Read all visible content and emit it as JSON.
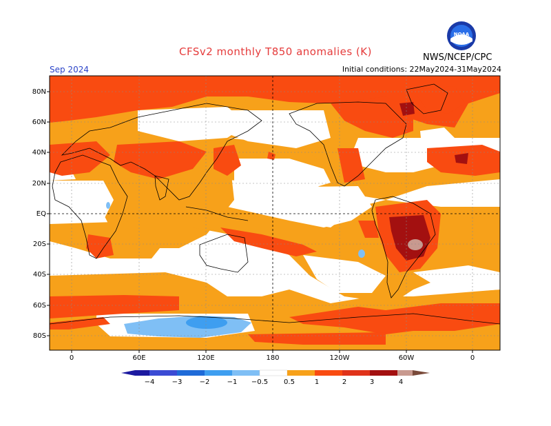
{
  "title": "CFSv2 monthly T850 anomalies (K)",
  "month_label": "Sep 2024",
  "init_conditions": "Initial conditions: 22May2024-31May2024",
  "agency": "NWS/NCEP/CPC",
  "logo_text": "NOAA",
  "lat_labels": [
    "80N",
    "60N",
    "40N",
    "20N",
    "EQ",
    "20S",
    "40S",
    "60S",
    "80S"
  ],
  "lon_labels": [
    "0",
    "60E",
    "120E",
    "180",
    "120W",
    "60W",
    "0"
  ],
  "colorbar": {
    "labels": [
      "−4",
      "−3",
      "−2",
      "−1",
      "−0.5",
      "0.5",
      "1",
      "2",
      "3",
      "4"
    ],
    "neg_colors": [
      "#1c1aa0",
      "#3b4bd4",
      "#1f6bd8",
      "#3e9ef0",
      "#7fbff5"
    ],
    "pos_colors": [
      "#f7a11a",
      "#f94b11",
      "#e0331a",
      "#a31010",
      "#c8998f",
      "#7a4a3a"
    ]
  },
  "colors": {
    "weak_warm": "#f7a11a",
    "warm": "#f94b11",
    "hot": "#a31010",
    "very_hot": "#c8998f",
    "cool": "#7fbff5",
    "cold": "#3e9ef0"
  }
}
